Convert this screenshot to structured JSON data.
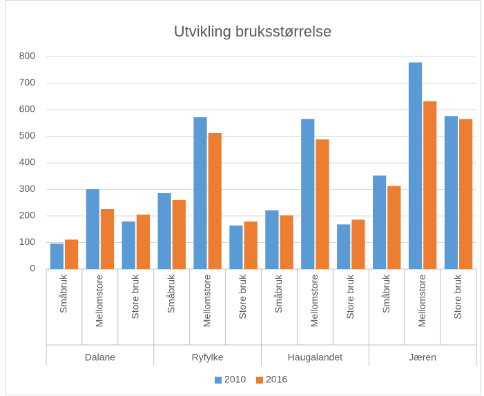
{
  "chart_data": {
    "type": "bar",
    "title": "Utvikling bruksstørrelse",
    "groups": [
      "Dalane",
      "Ryfylke",
      "Haugalandet",
      "Jæren"
    ],
    "categories": [
      "Småbruk",
      "Mellomstore",
      "Store bruk",
      "Småbruk",
      "Mellomstore",
      "Store bruk",
      "Småbruk",
      "Mellomstore",
      "Store bruk",
      "Småbruk",
      "Mellomstore",
      "Store bruk"
    ],
    "series": [
      {
        "name": "2010",
        "color": "#5b9bd5",
        "values": [
          96,
          301,
          179,
          286,
          572,
          164,
          221,
          565,
          168,
          352,
          778,
          576
        ]
      },
      {
        "name": "2016",
        "color": "#ed7d31",
        "values": [
          111,
          226,
          205,
          260,
          512,
          179,
          202,
          488,
          186,
          313,
          632,
          565
        ]
      }
    ],
    "ylim": [
      0,
      800
    ],
    "yticks": [
      0,
      100,
      200,
      300,
      400,
      500,
      600,
      700,
      800
    ],
    "grid": true,
    "legend": "bottom"
  }
}
